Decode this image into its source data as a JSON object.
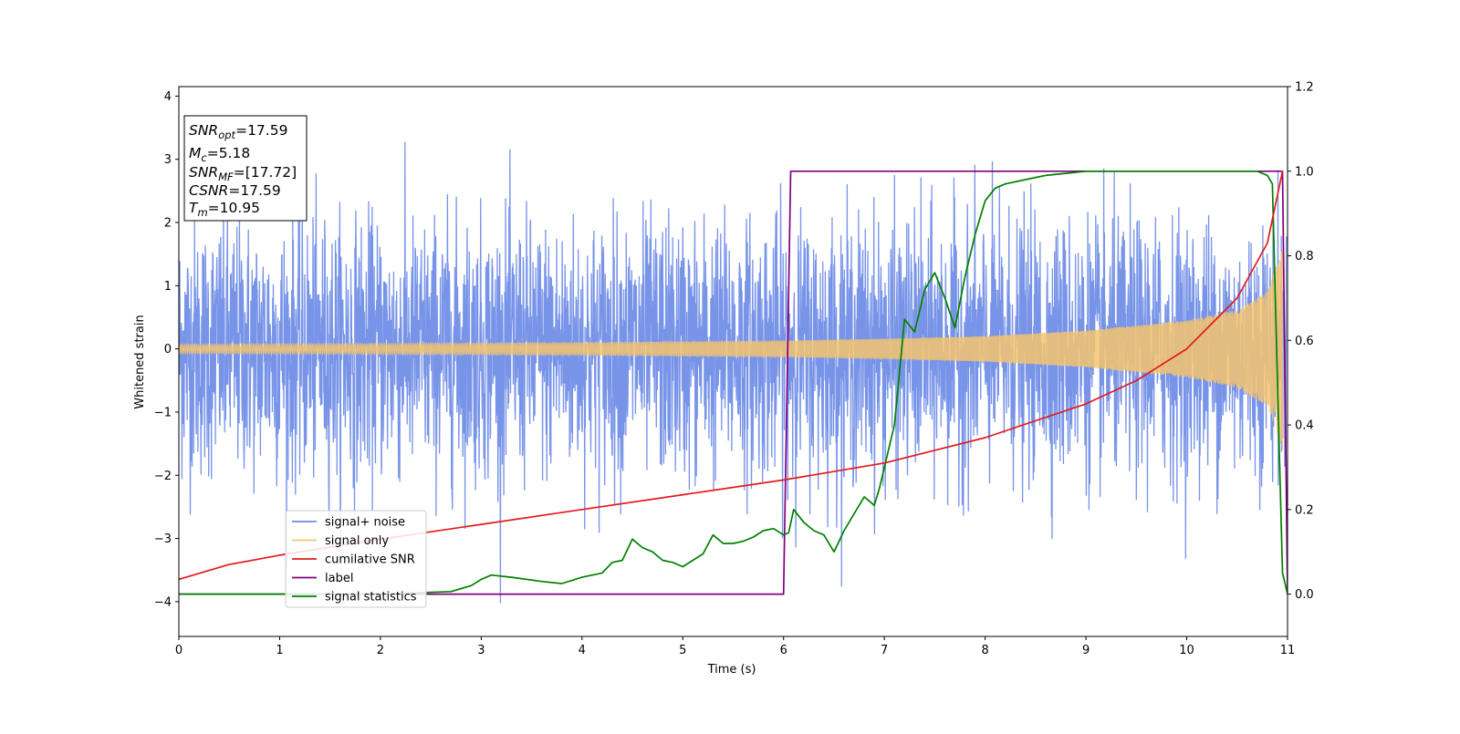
{
  "chart_data": {
    "type": "line",
    "title": "",
    "xlabel": "Time (s)",
    "ylabel": "Whitened strain",
    "y2label": "",
    "xlim": [
      0,
      11
    ],
    "ylim": [
      -4.55,
      4.15
    ],
    "y2lim": [
      -0.1,
      1.2
    ],
    "x_ticks": [
      "0",
      "1",
      "2",
      "3",
      "4",
      "5",
      "6",
      "7",
      "8",
      "9",
      "10",
      "11"
    ],
    "y_ticks": [
      "−4",
      "−3",
      "−2",
      "−1",
      "0",
      "1",
      "2",
      "3",
      "4"
    ],
    "y2_ticks": [
      "0.0",
      "0.2",
      "0.4",
      "0.6",
      "0.8",
      "1.0",
      "1.2"
    ],
    "grid": false,
    "legend_position": "lower-left",
    "series": [
      {
        "name": "signal+ noise",
        "axis": "left",
        "color": "#6d8be6",
        "description": "dense random noise around 0, roughly −3.5 to 3.5",
        "amplitude_sd": 1.0
      },
      {
        "name": "signal only",
        "axis": "left",
        "color": "#f5c46e",
        "description": "chirp oscillation, amplitude 0.07 at 0 s growing to ~1.6 at 10.95 s",
        "envelope": [
          [
            0,
            0.07
          ],
          [
            2,
            0.08
          ],
          [
            4,
            0.1
          ],
          [
            6,
            0.13
          ],
          [
            7,
            0.16
          ],
          [
            8,
            0.2
          ],
          [
            9,
            0.29
          ],
          [
            10,
            0.45
          ],
          [
            10.5,
            0.62
          ],
          [
            10.8,
            0.9
          ],
          [
            10.95,
            1.6
          ]
        ]
      },
      {
        "name": "cumilative SNR",
        "axis": "right",
        "color": "#e31a1c",
        "x": [
          0,
          0.5,
          1,
          2,
          3,
          4,
          5,
          6,
          7,
          8,
          9,
          9.5,
          10,
          10.5,
          10.8,
          10.95
        ],
        "y": [
          0.035,
          0.07,
          0.092,
          0.13,
          0.165,
          0.2,
          0.235,
          0.27,
          0.31,
          0.37,
          0.45,
          0.505,
          0.58,
          0.7,
          0.83,
          1.0
        ]
      },
      {
        "name": "label",
        "axis": "right",
        "color": "#800080",
        "x": [
          0,
          6.0,
          6.07,
          10.95,
          11.0
        ],
        "y": [
          0,
          0,
          1,
          1,
          0
        ]
      },
      {
        "name": "signal statistics",
        "axis": "right",
        "color": "#008000",
        "x": [
          0,
          1,
          2,
          2.7,
          2.9,
          3.0,
          3.1,
          3.3,
          3.6,
          3.8,
          4.0,
          4.2,
          4.3,
          4.4,
          4.5,
          4.6,
          4.7,
          4.8,
          4.9,
          5.0,
          5.1,
          5.2,
          5.3,
          5.4,
          5.5,
          5.6,
          5.7,
          5.8,
          5.9,
          6.0,
          6.05,
          6.1,
          6.2,
          6.3,
          6.4,
          6.5,
          6.6,
          6.7,
          6.8,
          6.9,
          6.95,
          7.0,
          7.1,
          7.2,
          7.3,
          7.4,
          7.5,
          7.6,
          7.7,
          7.8,
          7.9,
          8.0,
          8.1,
          8.2,
          8.4,
          8.6,
          8.8,
          9.0,
          9.5,
          10.0,
          10.3,
          10.7,
          10.8,
          10.85,
          10.9,
          10.95,
          11.0
        ],
        "y": [
          0,
          0,
          0,
          0.006,
          0.02,
          0.035,
          0.045,
          0.04,
          0.03,
          0.025,
          0.04,
          0.05,
          0.075,
          0.08,
          0.13,
          0.11,
          0.1,
          0.08,
          0.075,
          0.065,
          0.08,
          0.095,
          0.14,
          0.12,
          0.12,
          0.125,
          0.135,
          0.15,
          0.155,
          0.14,
          0.145,
          0.2,
          0.17,
          0.15,
          0.14,
          0.1,
          0.15,
          0.19,
          0.23,
          0.21,
          0.25,
          0.3,
          0.4,
          0.65,
          0.62,
          0.72,
          0.76,
          0.7,
          0.63,
          0.75,
          0.85,
          0.93,
          0.96,
          0.97,
          0.98,
          0.99,
          0.995,
          1.0,
          1.0,
          1.0,
          1.0,
          1.0,
          0.99,
          0.97,
          0.5,
          0.05,
          0
        ]
      }
    ],
    "annotations": [
      {
        "base": "SNR",
        "sub": "opt",
        "value": "=17.59"
      },
      {
        "base": "M",
        "sub": "c",
        "value": "=5.18"
      },
      {
        "base": "SNR",
        "sub": "MF",
        "value": "=[17.72]"
      },
      {
        "base": "CSNR",
        "sub": "",
        "value": "=17.59"
      },
      {
        "base": "T",
        "sub": "m",
        "value": "=10.95"
      }
    ]
  }
}
